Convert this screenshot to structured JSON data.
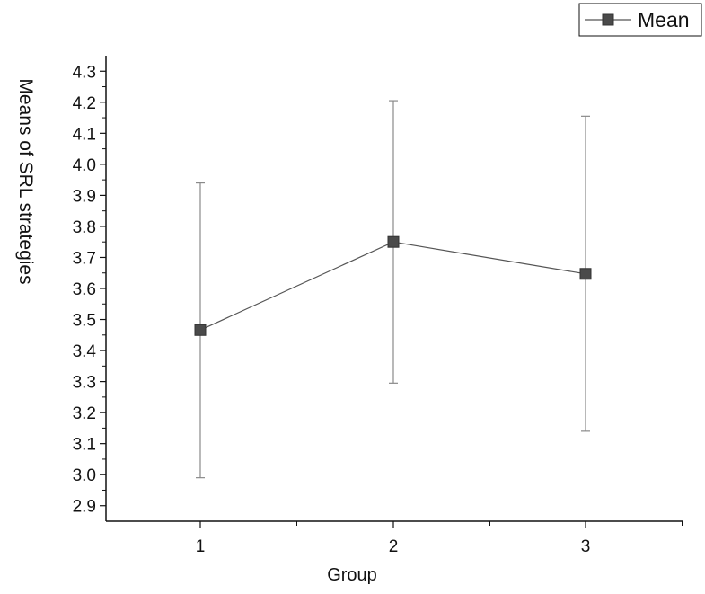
{
  "chart_data": {
    "type": "line",
    "xlabel": "Group",
    "ylabel": "Means of SRL strategies",
    "categories": [
      "1",
      "2",
      "3"
    ],
    "series": [
      {
        "name": "Mean",
        "values": [
          3.466,
          3.75,
          3.647
        ],
        "error_low": [
          2.99,
          3.295,
          3.14
        ],
        "error_high": [
          3.94,
          4.205,
          4.155
        ]
      }
    ],
    "ylim": [
      2.85,
      4.35
    ],
    "yticks": [
      "2.9",
      "3.0",
      "3.1",
      "3.2",
      "3.3",
      "3.4",
      "3.5",
      "3.6",
      "3.7",
      "3.8",
      "3.9",
      "4.0",
      "4.1",
      "4.2",
      "4.3"
    ],
    "ytick_values": [
      2.9,
      3.0,
      3.1,
      3.2,
      3.3,
      3.4,
      3.5,
      3.6,
      3.7,
      3.8,
      3.9,
      4.0,
      4.1,
      4.2,
      4.3
    ],
    "grid": false,
    "legend": "top-right",
    "colors": {
      "marker": "#4a4a4a",
      "line": "#555555",
      "errorbar": "#8a8a8a"
    }
  }
}
